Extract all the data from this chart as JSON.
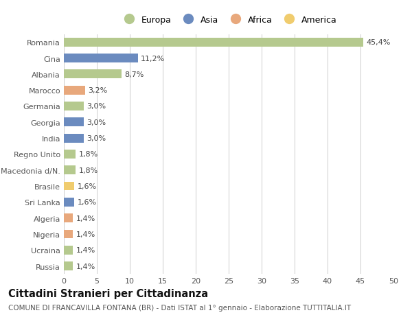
{
  "countries": [
    "Romania",
    "Cina",
    "Albania",
    "Marocco",
    "Germania",
    "Georgia",
    "India",
    "Regno Unito",
    "Macedonia d/N.",
    "Brasile",
    "Sri Lanka",
    "Algeria",
    "Nigeria",
    "Ucraina",
    "Russia"
  ],
  "values": [
    45.4,
    11.2,
    8.7,
    3.2,
    3.0,
    3.0,
    3.0,
    1.8,
    1.8,
    1.6,
    1.6,
    1.4,
    1.4,
    1.4,
    1.4
  ],
  "labels": [
    "45,4%",
    "11,2%",
    "8,7%",
    "3,2%",
    "3,0%",
    "3,0%",
    "3,0%",
    "1,8%",
    "1,8%",
    "1,6%",
    "1,6%",
    "1,4%",
    "1,4%",
    "1,4%",
    "1,4%"
  ],
  "continents": [
    "Europa",
    "Asia",
    "Europa",
    "Africa",
    "Europa",
    "Asia",
    "Asia",
    "Europa",
    "Europa",
    "America",
    "Asia",
    "Africa",
    "Africa",
    "Europa",
    "Europa"
  ],
  "continent_colors": {
    "Europa": "#b5c98e",
    "Asia": "#6b8bbf",
    "Africa": "#e8a87c",
    "America": "#f0cc6e"
  },
  "legend_order": [
    "Europa",
    "Asia",
    "Africa",
    "America"
  ],
  "title": "Cittadini Stranieri per Cittadinanza",
  "subtitle": "COMUNE DI FRANCAVILLA FONTANA (BR) - Dati ISTAT al 1° gennaio - Elaborazione TUTTITALIA.IT",
  "xlim": [
    0,
    50
  ],
  "xticks": [
    0,
    5,
    10,
    15,
    20,
    25,
    30,
    35,
    40,
    45,
    50
  ],
  "bg_color": "#ffffff",
  "grid_color": "#cccccc",
  "bar_height": 0.55,
  "label_fontsize": 8,
  "tick_fontsize": 8,
  "title_fontsize": 10.5,
  "subtitle_fontsize": 7.5
}
